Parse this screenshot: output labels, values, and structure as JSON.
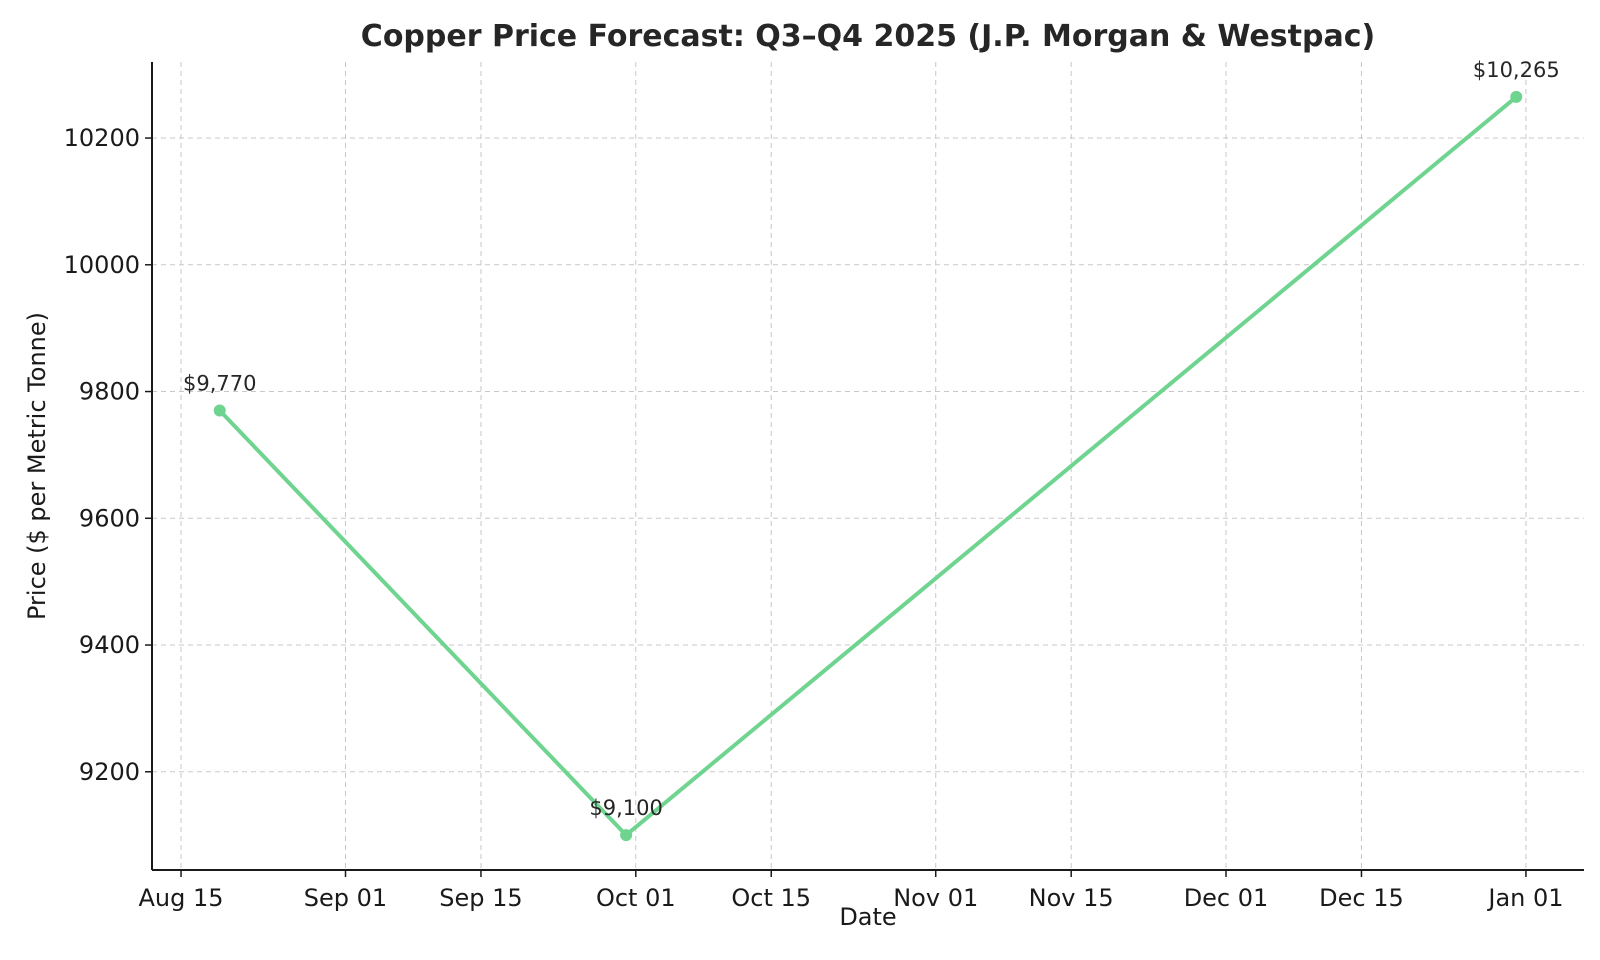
{
  "chart_data": {
    "type": "line",
    "title": "Copper Price Forecast: Q3–Q4 2025 (J.P. Morgan & Westpac)",
    "xlabel": "Date",
    "ylabel": "Price ($ per Metric Tonne)",
    "x_ticks": [
      "2025-08-15",
      "2025-09-01",
      "2025-09-15",
      "2025-10-01",
      "2025-10-15",
      "2025-11-01",
      "2025-11-15",
      "2025-12-01",
      "2025-12-15",
      "2026-01-01"
    ],
    "x_tick_labels": [
      "Aug 15",
      "Sep 01",
      "Sep 15",
      "Oct 01",
      "Oct 15",
      "Nov 01",
      "Nov 15",
      "Dec 01",
      "Dec 15",
      "Jan 01"
    ],
    "xlim": [
      "2025-08-12",
      "2026-01-07"
    ],
    "ylim": [
      9045,
      10320
    ],
    "y_ticks": [
      9200,
      9400,
      9600,
      9800,
      10000,
      10200
    ],
    "grid": true,
    "color": "#6fd48f",
    "series": [
      {
        "x": [
          "2025-08-19",
          "2025-09-30",
          "2025-12-31"
        ],
        "values": [
          9770,
          9100,
          10265
        ],
        "labels": [
          "$9,770",
          "$9,100",
          "$10,265"
        ]
      }
    ]
  }
}
